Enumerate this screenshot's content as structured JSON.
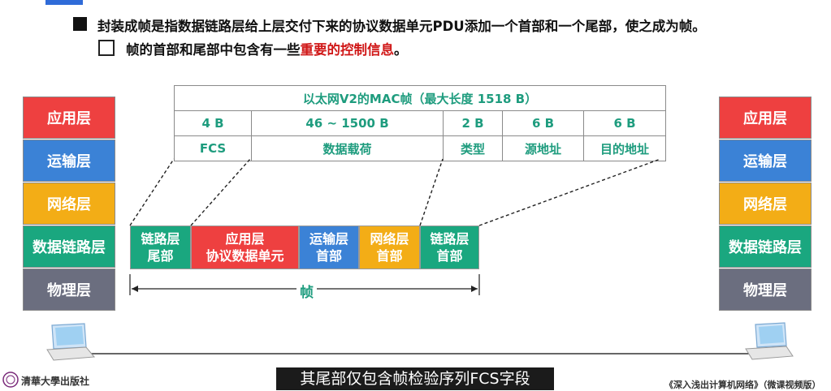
{
  "bullets": {
    "line1": "封装成帧是指数据链路层给上层交付下来的协议数据单元PDU添加一个首部和一个尾部，使之成为帧。",
    "line2_prefix": "帧的首部和尾部中包含有一些",
    "line2_highlight": "重要的控制信息",
    "line2_suffix": "。"
  },
  "left_stack": [
    "应用层",
    "运输层",
    "网络层",
    "数据链路层",
    "物理层"
  ],
  "right_stack": [
    "应用层",
    "运输层",
    "网络层",
    "数据链路层",
    "物理层"
  ],
  "mac_frame": {
    "title": "以太网V2的MAC帧（最大长度 1518 B）",
    "sizes": [
      "4 B",
      "46 ~ 1500 B",
      "2 B",
      "6 B",
      "6 B"
    ],
    "fields": [
      "FCS",
      "数据载荷",
      "类型",
      "源地址",
      "目的地址"
    ]
  },
  "frame": {
    "segments": [
      {
        "line1": "链路层",
        "line2": "尾部"
      },
      {
        "line1": "应用层",
        "line2": "协议数据单元"
      },
      {
        "line1": "运输层",
        "line2": "首部"
      },
      {
        "line1": "网络层",
        "line2": "首部"
      },
      {
        "line1": "链路层",
        "line2": "首部"
      }
    ],
    "label": "帧"
  },
  "caption": "其尾部仅包含帧检验序列FCS字段",
  "publisher": "清華大學出版社",
  "book_title": "《深入浅出计算机网络》（微课视频版）",
  "colors": {
    "red": "#ee4040",
    "blue": "#3b82d6",
    "yellow": "#f3ad16",
    "green": "#1aa77f",
    "gray": "#6b6e7f",
    "mac_text": "#1e9c7e",
    "highlight": "#d01818"
  }
}
